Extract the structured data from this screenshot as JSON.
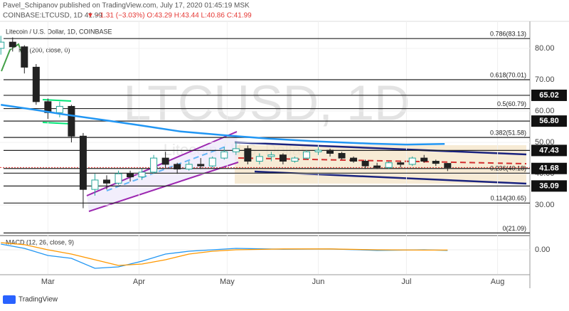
{
  "header": {
    "publisher": "Pavel_Schipanov published on TradingView.com, July 17, 2020 01:45:19 MSK",
    "symbol": "COINBASE:LTCUSD, 1D 41.99",
    "quote": "▼ −1.31 (−3.03%) O:43.29 H:43.44 L:40.86 C:41.99"
  },
  "footer": {
    "brand": "TradingView"
  },
  "chart_data": {
    "type": "candlestick",
    "title": "Litecoin / U.S. Dollar, 1D, COINBASE",
    "watermark": "LTCUSD, 1D",
    "watermark_sub": "Litecoin / U.S. Dollar",
    "ma_label": "MA (200, close, 0)",
    "macd_label": "MACD (12, 26, close, 9)",
    "up_color": "#26a69a",
    "down_color": "#222222",
    "x": [
      -16,
      -12,
      -8,
      -4,
      0,
      4,
      8,
      12,
      16,
      20,
      24,
      28,
      32,
      36,
      40,
      44,
      48,
      52,
      56,
      60,
      64,
      68,
      72,
      76,
      80,
      84,
      88,
      92,
      96,
      100,
      104,
      108,
      112,
      116,
      120,
      124,
      128,
      132,
      136
    ],
    "open": [
      80,
      82,
      80.5,
      74,
      63,
      59.5,
      61.5,
      52,
      35,
      38,
      37,
      40,
      39,
      40.5,
      45,
      43,
      41.5,
      43,
      42.5,
      45,
      47,
      48,
      44,
      45.5,
      46,
      44,
      45,
      47,
      47.5,
      46.5,
      45,
      44,
      42.5,
      42,
      43.5,
      43,
      45,
      44,
      43.29
    ],
    "high": [
      84,
      83.5,
      81,
      75,
      64,
      63,
      62,
      53,
      40,
      39.5,
      41,
      41,
      41.5,
      46,
      47,
      43.5,
      44,
      45,
      45.5,
      48.5,
      50,
      49,
      46.5,
      47,
      46.5,
      45.5,
      47.5,
      48.5,
      48,
      47,
      45.5,
      44.5,
      43.5,
      44,
      44,
      45.5,
      46,
      44.5,
      43.44
    ],
    "low": [
      78,
      79,
      72,
      62,
      57.5,
      58,
      50,
      29,
      33,
      35,
      36.5,
      37.5,
      38,
      40,
      42,
      40,
      41,
      41.5,
      42,
      44.5,
      46,
      43,
      43,
      44,
      43,
      43.5,
      44.5,
      46,
      45.5,
      44.5,
      43.5,
      41.5,
      41.5,
      41.5,
      42,
      42.5,
      43.5,
      42.5,
      40.86
    ],
    "close": [
      82,
      80.5,
      74,
      63,
      59.5,
      61.5,
      52,
      35,
      38,
      37,
      40,
      39,
      40.5,
      45,
      43,
      41.5,
      43,
      42.5,
      45,
      47,
      48,
      44,
      45.5,
      46,
      44,
      45,
      47,
      47.5,
      46.5,
      45,
      44,
      42.5,
      42,
      43.5,
      43,
      45,
      44,
      43.3,
      41.99
    ],
    "ma": {
      "name": "MA 200",
      "color": "#2196f3",
      "x": [
        -16,
        -5,
        5,
        20,
        31,
        45,
        61,
        75,
        92,
        110,
        122,
        135
      ],
      "values": [
        62,
        60.5,
        59,
        57,
        55.5,
        53.5,
        52.2,
        51.2,
        50.3,
        49.6,
        49.3,
        49.5
      ]
    },
    "xlim": [
      -16.3,
      164
    ],
    "xticks": [
      {
        "value": 0,
        "label": "Mar"
      },
      {
        "value": 31,
        "label": "Apr"
      },
      {
        "value": 61,
        "label": "May"
      },
      {
        "value": 92,
        "label": "Jun"
      },
      {
        "value": 122,
        "label": "Jul"
      },
      {
        "value": 153,
        "label": "Aug"
      }
    ],
    "ylim": [
      20.5,
      85.9
    ],
    "yticks": [
      {
        "value": 30,
        "label": "30.00"
      },
      {
        "value": 40,
        "label": "40.00"
      },
      {
        "value": 50,
        "label": "50.00"
      },
      {
        "value": 60,
        "label": "60.00"
      },
      {
        "value": 70,
        "label": "70.00"
      },
      {
        "value": 80,
        "label": "80.00"
      }
    ],
    "fib_levels": [
      {
        "value": 83.13,
        "label": "0.786(83.13)"
      },
      {
        "value": 70.01,
        "label": "0.618(70.01)"
      },
      {
        "value": 60.79,
        "label": "0.5(60.79)"
      },
      {
        "value": 51.58,
        "label": "0.382(51.58)"
      },
      {
        "value": 40.18,
        "label": "0.236(40.18)"
      },
      {
        "value": 30.65,
        "label": "0.114(30.65)"
      },
      {
        "value": 21.09,
        "label": "0(21.09)"
      }
    ],
    "price_tags": [
      65.02,
      {
        "value": 56.8,
        "label": "56.80"
      },
      47.43,
      41.68,
      36.09
    ],
    "last_price": 41.99,
    "macd": {
      "x": [
        -16,
        -8,
        0,
        8,
        16,
        24,
        32,
        40,
        48,
        56,
        64,
        80,
        96,
        112,
        128,
        136
      ],
      "series": [
        {
          "name": "MACD",
          "color": "#2196f3",
          "values": [
            2,
            0.5,
            -2,
            -3,
            -6.5,
            -6,
            -4,
            -1.5,
            -0.5,
            0,
            0.5,
            0.2,
            0.3,
            -0.2,
            0,
            -0.2
          ]
        },
        {
          "name": "Signal",
          "color": "#ff9800",
          "values": [
            2.5,
            1.8,
            0,
            -1.5,
            -3.5,
            -5.5,
            -5,
            -3.5,
            -1.5,
            -0.5,
            0,
            0.3,
            0.3,
            0,
            -0.1,
            -0.1
          ]
        }
      ],
      "ylim": [
        -8.5,
        4.5
      ],
      "yticks": [
        {
          "value": 0,
          "label": "0.00"
        }
      ]
    }
  }
}
